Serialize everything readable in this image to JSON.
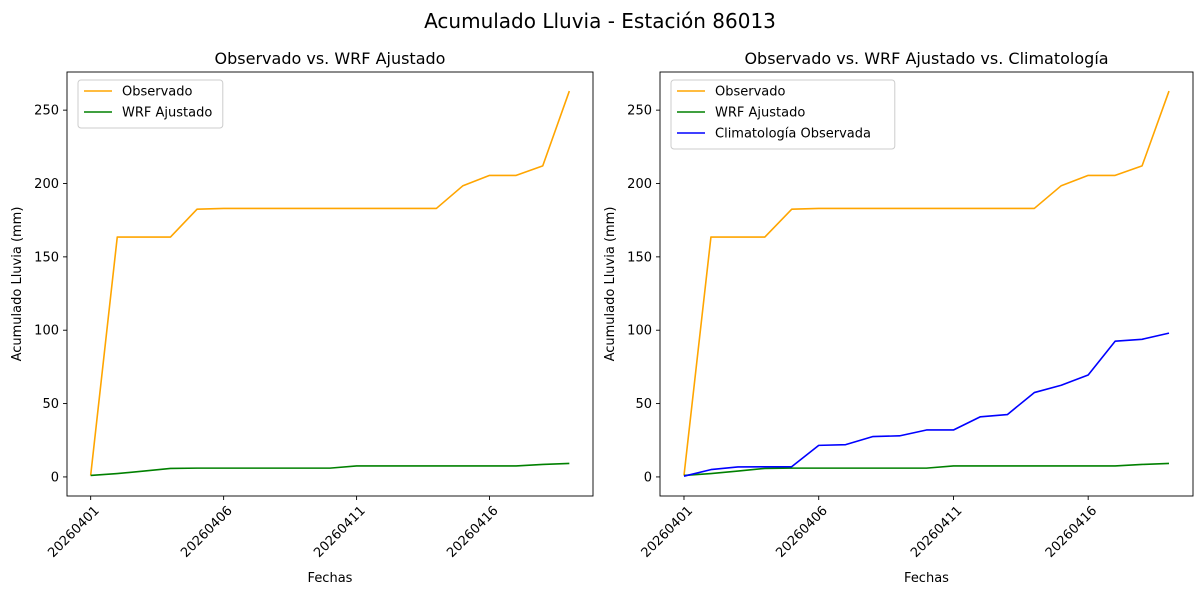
{
  "figure": {
    "suptitle": "Acumulado Lluvia - Estación 86013"
  },
  "chart_data": [
    {
      "type": "line",
      "title": "Observado vs. WRF Ajustado",
      "xlabel": "Fechas",
      "ylabel": "Acumulado Lluvia (mm)",
      "x": [
        "20260401",
        "20260402",
        "20260403",
        "20260404",
        "20260405",
        "20260406",
        "20260407",
        "20260408",
        "20260409",
        "20260410",
        "20260411",
        "20260412",
        "20260413",
        "20260414",
        "20260415",
        "20260416",
        "20260417",
        "20260418",
        "20260419"
      ],
      "xticks": [
        "20260401",
        "20260406",
        "20260411",
        "20260416"
      ],
      "yticks": [
        0,
        50,
        100,
        150,
        200,
        250
      ],
      "ylim": [
        -13,
        276
      ],
      "legend": "upper-left",
      "series": [
        {
          "name": "Observado",
          "color": "#ffa500",
          "values": [
            1.0,
            163.5,
            163.5,
            163.5,
            182.5,
            183.0,
            183.0,
            183.0,
            183.0,
            183.0,
            183.0,
            183.0,
            183.0,
            183.0,
            198.5,
            205.5,
            205.5,
            212.0,
            263.0
          ]
        },
        {
          "name": "WRF Ajustado",
          "color": "#008000",
          "values": [
            1.0,
            2.3,
            4.0,
            5.8,
            6.0,
            6.0,
            6.0,
            6.0,
            6.0,
            6.0,
            7.5,
            7.5,
            7.5,
            7.5,
            7.5,
            7.5,
            7.5,
            8.5,
            9.2
          ]
        }
      ]
    },
    {
      "type": "line",
      "title": "Observado vs. WRF Ajustado vs. Climatología",
      "xlabel": "Fechas",
      "ylabel": "Acumulado Lluvia (mm)",
      "x": [
        "20260401",
        "20260402",
        "20260403",
        "20260404",
        "20260405",
        "20260406",
        "20260407",
        "20260408",
        "20260409",
        "20260410",
        "20260411",
        "20260412",
        "20260413",
        "20260414",
        "20260415",
        "20260416",
        "20260417",
        "20260418",
        "20260419"
      ],
      "xticks": [
        "20260401",
        "20260406",
        "20260411",
        "20260416"
      ],
      "yticks": [
        0,
        50,
        100,
        150,
        200,
        250
      ],
      "ylim": [
        -13,
        276
      ],
      "legend": "upper-left",
      "series": [
        {
          "name": "Observado",
          "color": "#ffa500",
          "values": [
            1.0,
            163.5,
            163.5,
            163.5,
            182.5,
            183.0,
            183.0,
            183.0,
            183.0,
            183.0,
            183.0,
            183.0,
            183.0,
            183.0,
            198.5,
            205.5,
            205.5,
            212.0,
            263.0
          ]
        },
        {
          "name": "WRF Ajustado",
          "color": "#008000",
          "values": [
            1.0,
            2.3,
            4.0,
            5.8,
            6.0,
            6.0,
            6.0,
            6.0,
            6.0,
            6.0,
            7.5,
            7.5,
            7.5,
            7.5,
            7.5,
            7.5,
            7.5,
            8.5,
            9.2
          ]
        },
        {
          "name": "Climatología Observada",
          "color": "#0000ff",
          "values": [
            0.5,
            5.0,
            6.8,
            6.9,
            7.0,
            21.5,
            22.0,
            27.5,
            28.0,
            32.0,
            32.0,
            41.0,
            42.5,
            57.5,
            62.5,
            69.5,
            92.5,
            93.8,
            98.0
          ]
        }
      ]
    }
  ]
}
